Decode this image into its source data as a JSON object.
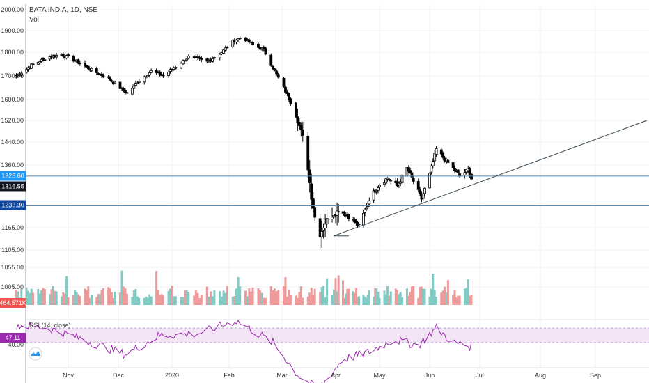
{
  "header": {
    "title": "BATA INDIA, 1D, NSE",
    "volume_label": "Vol"
  },
  "rsi": {
    "title": "RSI (14, close)",
    "value_tag": "47.11",
    "tick_label": "40.00"
  },
  "price_tags": [
    {
      "text": "1325.60",
      "value": 1325.6,
      "bg": "#2196f3"
    },
    {
      "text": "1316.55",
      "value": 1316.55,
      "bg": "#131722"
    },
    {
      "text": "1233.30",
      "value": 1233.3,
      "bg": "#0d47a1"
    }
  ],
  "volume_tag": {
    "text": "464.571K",
    "bg": "#ef5350"
  },
  "colors": {
    "up": "#ffffff",
    "down": "#000000",
    "vol_up": "#80cbc4",
    "vol_down": "#ef9a9a",
    "rsi_line": "#9c27b0",
    "rsi_band": "#f3e5f5",
    "trend": "#37474f",
    "hline": "#5b8ab0"
  },
  "chart_data": {
    "type": "candlestick",
    "y_ticks": [
      "2000.00",
      "1900.00",
      "1800.00",
      "1700.00",
      "1600.00",
      "1520.00",
      "1440.00",
      "1360.00",
      "1165.00",
      "1105.00",
      "1055.00",
      "1005.00"
    ],
    "x_ticks": [
      "Nov",
      "Dec",
      "2020",
      "Feb",
      "Mar",
      "Apr",
      "May",
      "Jun",
      "Jul",
      "Aug",
      "Sep"
    ],
    "horizontal_lines": [
      1325.6,
      1233.3
    ],
    "trendline": {
      "from": [
        "2020-03-31",
        1143
      ],
      "to": [
        "2020-09-30",
        1520
      ]
    },
    "price_anchors": [
      [
        "2019-10-01",
        1700
      ],
      [
        "2019-10-10",
        1745
      ],
      [
        "2019-10-20",
        1780
      ],
      [
        "2019-10-28",
        1790
      ],
      [
        "2019-11-05",
        1765
      ],
      [
        "2019-11-15",
        1725
      ],
      [
        "2019-11-25",
        1690
      ],
      [
        "2019-12-02",
        1650
      ],
      [
        "2019-12-06",
        1625
      ],
      [
        "2019-12-12",
        1675
      ],
      [
        "2019-12-20",
        1720
      ],
      [
        "2019-12-27",
        1700
      ],
      [
        "2020-01-03",
        1740
      ],
      [
        "2020-01-10",
        1780
      ],
      [
        "2020-01-20",
        1760
      ],
      [
        "2020-01-28",
        1800
      ],
      [
        "2020-02-03",
        1850
      ],
      [
        "2020-02-08",
        1870
      ],
      [
        "2020-02-14",
        1835
      ],
      [
        "2020-02-20",
        1810
      ],
      [
        "2020-02-26",
        1720
      ],
      [
        "2020-03-02",
        1650
      ],
      [
        "2020-03-08",
        1560
      ],
      [
        "2020-03-14",
        1440
      ],
      [
        "2020-03-18",
        1260
      ],
      [
        "2020-03-22",
        1135
      ],
      [
        "2020-03-27",
        1190
      ],
      [
        "2020-04-03",
        1220
      ],
      [
        "2020-04-10",
        1200
      ],
      [
        "2020-04-17",
        1170
      ],
      [
        "2020-04-24",
        1255
      ],
      [
        "2020-05-01",
        1300
      ],
      [
        "2020-05-06",
        1320
      ],
      [
        "2020-05-12",
        1295
      ],
      [
        "2020-05-18",
        1350
      ],
      [
        "2020-05-22",
        1310
      ],
      [
        "2020-05-27",
        1255
      ],
      [
        "2020-06-01",
        1330
      ],
      [
        "2020-06-05",
        1415
      ],
      [
        "2020-06-10",
        1380
      ],
      [
        "2020-06-15",
        1350
      ],
      [
        "2020-06-19",
        1325
      ],
      [
        "2020-06-24",
        1345
      ],
      [
        "2020-06-27",
        1316.55
      ]
    ],
    "volume_last": 464571,
    "rsi_anchors": [
      [
        "2019-10-01",
        62
      ],
      [
        "2019-10-20",
        60
      ],
      [
        "2019-11-10",
        52
      ],
      [
        "2019-12-05",
        42
      ],
      [
        "2019-12-25",
        55
      ],
      [
        "2020-01-15",
        56
      ],
      [
        "2020-02-05",
        65
      ],
      [
        "2020-02-25",
        50
      ],
      [
        "2020-03-10",
        28
      ],
      [
        "2020-03-22",
        18
      ],
      [
        "2020-04-05",
        38
      ],
      [
        "2020-04-25",
        44
      ],
      [
        "2020-05-10",
        52
      ],
      [
        "2020-05-25",
        48
      ],
      [
        "2020-06-05",
        60
      ],
      [
        "2020-06-15",
        50
      ],
      [
        "2020-06-27",
        47.11
      ]
    ]
  }
}
